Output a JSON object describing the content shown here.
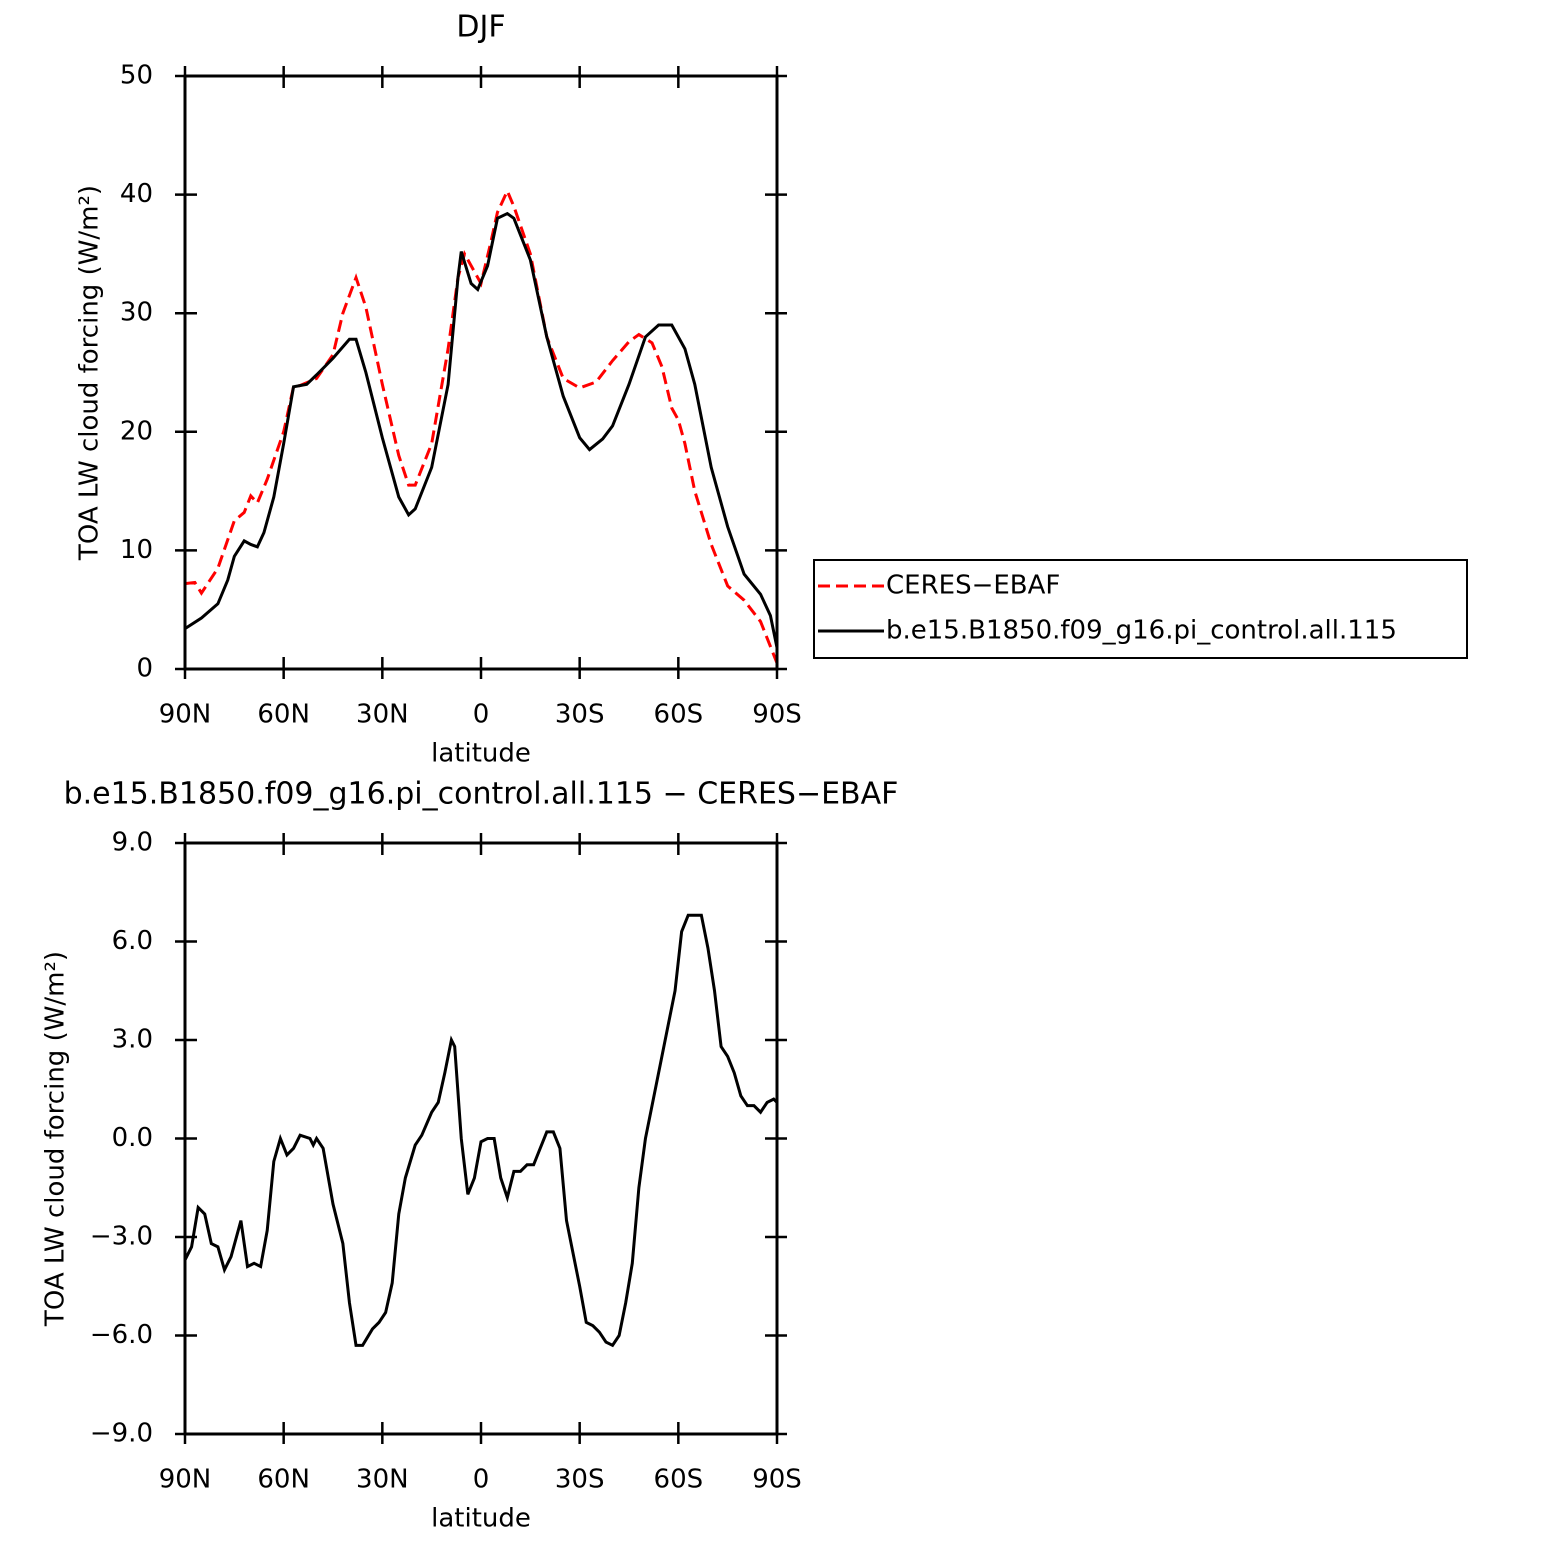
{
  "chart_data": [
    {
      "type": "line",
      "title": "DJF",
      "xlabel": "latitude",
      "ylabel": "TOA LW cloud forcing (W/m²)",
      "xlim": [
        90,
        -90
      ],
      "xticks": [
        {
          "value": 90,
          "label": "90N"
        },
        {
          "value": 60,
          "label": "60N"
        },
        {
          "value": 30,
          "label": "30N"
        },
        0,
        {
          "value": -30,
          "label": "30S"
        },
        {
          "value": -60,
          "label": "60S"
        },
        {
          "value": -90,
          "label": "90S"
        }
      ],
      "ylim": [
        0,
        50
      ],
      "yticks": [
        0,
        10,
        20,
        30,
        40,
        50
      ],
      "legend": "right",
      "series": [
        {
          "name": "CERES−EBAF",
          "color": "#ff0000",
          "dash": true,
          "x": [
            90,
            87,
            85,
            80,
            75,
            72,
            70,
            68,
            65,
            60,
            57,
            55,
            50,
            45,
            42,
            38,
            35,
            30,
            25,
            22,
            20,
            15,
            10,
            7,
            5,
            2,
            0,
            -3,
            -5,
            -8,
            -10,
            -15,
            -20,
            -25,
            -30,
            -35,
            -40,
            -45,
            -48,
            -52,
            -55,
            -58,
            -60,
            -62,
            -65,
            -70,
            -75,
            -80,
            -85,
            -90
          ],
          "values": [
            7.2,
            7.3,
            6.4,
            8.5,
            12.5,
            13.2,
            14.6,
            14.0,
            16.0,
            20,
            23.8,
            23.9,
            24.5,
            26.5,
            30,
            33.0,
            30.5,
            24,
            18,
            15.5,
            15.5,
            19,
            27,
            33,
            35,
            33.5,
            32.5,
            36,
            38.5,
            40.3,
            39,
            35,
            28,
            24.5,
            23.7,
            24.2,
            26,
            27.6,
            28.2,
            27.5,
            25.5,
            22,
            21,
            19,
            15,
            10.5,
            7,
            5.8,
            4,
            0.5
          ]
        },
        {
          "name": "b.e15.B1850.f09_g16.pi_control.all.115",
          "color": "#000000",
          "dash": false,
          "x": [
            90,
            85,
            80,
            77,
            75,
            72,
            70,
            68,
            66,
            63,
            60,
            57,
            53,
            50,
            45,
            40,
            38,
            35,
            30,
            25,
            22,
            20,
            15,
            10,
            7,
            6,
            3,
            1,
            -2,
            -5,
            -8,
            -10,
            -15,
            -20,
            -25,
            -30,
            -33,
            -37,
            -40,
            -45,
            -50,
            -54,
            -58,
            -62,
            -65,
            -70,
            -75,
            -80,
            -85,
            -88,
            -90
          ],
          "values": [
            3.4,
            4.3,
            5.5,
            7.5,
            9.5,
            10.8,
            10.5,
            10.3,
            11.5,
            14.5,
            19,
            23.8,
            24,
            24.8,
            26.2,
            27.8,
            27.8,
            25,
            19.5,
            14.5,
            13,
            13.5,
            17,
            24,
            33,
            35.2,
            32.5,
            32,
            34,
            38,
            38.4,
            38,
            34.5,
            28,
            23,
            19.5,
            18.5,
            19.4,
            20.5,
            24,
            28,
            29,
            29,
            27,
            24,
            17,
            12,
            8,
            6.3,
            4.5,
            1.8
          ]
        }
      ]
    },
    {
      "type": "line",
      "title": "b.e15.B1850.f09_g16.pi_control.all.115 − CERES−EBAF",
      "xlabel": "latitude",
      "ylabel": "TOA LW cloud forcing (W/m²)",
      "xlim": [
        90,
        -90
      ],
      "xticks": [
        {
          "value": 90,
          "label": "90N"
        },
        {
          "value": 60,
          "label": "60N"
        },
        {
          "value": 30,
          "label": "30N"
        },
        0,
        {
          "value": -30,
          "label": "30S"
        },
        {
          "value": -60,
          "label": "60S"
        },
        {
          "value": -90,
          "label": "90S"
        }
      ],
      "ylim": [
        -9,
        9
      ],
      "yticks": [
        {
          "value": -9,
          "label": "−9.0"
        },
        {
          "value": -6,
          "label": "−6.0"
        },
        {
          "value": -3,
          "label": "−3.0"
        },
        {
          "value": 0,
          "label": "0.0"
        },
        {
          "value": 3,
          "label": "3.0"
        },
        {
          "value": 6,
          "label": "6.0"
        },
        {
          "value": 9,
          "label": "9.0"
        }
      ],
      "series": [
        {
          "color": "#000000",
          "dash": false,
          "x": [
            90,
            88,
            86,
            84,
            82,
            80,
            78,
            76,
            73,
            71,
            69,
            67,
            65,
            63,
            61,
            59,
            57,
            55,
            52,
            51,
            50,
            48,
            45,
            42,
            40,
            38,
            36,
            33,
            31,
            29,
            27,
            25,
            23,
            20,
            18,
            15,
            13,
            11,
            9,
            8,
            6,
            4,
            2,
            0,
            -2,
            -4,
            -6,
            -8,
            -10,
            -12,
            -14,
            -16,
            -18,
            -20,
            -22,
            -24,
            -26,
            -28,
            -30,
            -32,
            -34,
            -36,
            -38,
            -40,
            -42,
            -44,
            -46,
            -48,
            -50,
            -52,
            -55,
            -57,
            -59,
            -61,
            -63,
            -65,
            -67,
            -69,
            -71,
            -73,
            -75,
            -77,
            -79,
            -81,
            -83,
            -85,
            -87,
            -89,
            -90
          ],
          "values": [
            -3.7,
            -3.3,
            -2.1,
            -2.3,
            -3.2,
            -3.3,
            -4.0,
            -3.6,
            -2.5,
            -3.9,
            -3.8,
            -3.9,
            -2.8,
            -0.7,
            0.0,
            -0.5,
            -0.3,
            0.1,
            0.0,
            -0.2,
            0.0,
            -0.3,
            -2.0,
            -3.2,
            -5.0,
            -6.3,
            -6.3,
            -5.8,
            -5.6,
            -5.3,
            -4.4,
            -2.3,
            -1.2,
            -0.2,
            0.1,
            0.8,
            1.1,
            2.0,
            3.0,
            2.8,
            0.0,
            -1.7,
            -1.2,
            -0.1,
            0.0,
            0.0,
            -1.2,
            -1.8,
            -1.0,
            -1.0,
            -0.8,
            -0.8,
            -0.3,
            0.2,
            0.2,
            -0.3,
            -2.5,
            -3.5,
            -4.5,
            -5.6,
            -5.7,
            -5.9,
            -6.2,
            -6.3,
            -6.0,
            -5.0,
            -3.8,
            -1.5,
            0.0,
            1.0,
            2.5,
            3.5,
            4.5,
            6.3,
            6.8,
            6.8,
            6.8,
            5.8,
            4.5,
            2.8,
            2.5,
            2.0,
            1.3,
            1.0,
            1.0,
            0.8,
            1.1,
            1.2,
            1.1
          ]
        }
      ]
    }
  ]
}
